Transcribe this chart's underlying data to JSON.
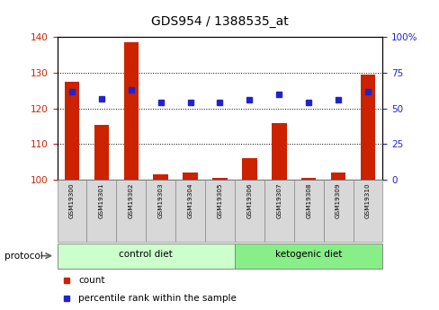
{
  "title": "GDS954 / 1388535_at",
  "samples": [
    "GSM19300",
    "GSM19301",
    "GSM19302",
    "GSM19303",
    "GSM19304",
    "GSM19305",
    "GSM19306",
    "GSM19307",
    "GSM19308",
    "GSM19309",
    "GSM19310"
  ],
  "counts": [
    127.5,
    115.5,
    138.5,
    101.5,
    102.0,
    100.5,
    106.0,
    116.0,
    100.5,
    102.0,
    129.5
  ],
  "percentile_ranks": [
    62,
    57,
    63,
    54,
    54,
    54,
    56,
    60,
    54,
    56,
    62
  ],
  "ylim_left": [
    100,
    140
  ],
  "ylim_right": [
    0,
    100
  ],
  "yticks_left": [
    100,
    110,
    120,
    130,
    140
  ],
  "yticks_right": [
    0,
    25,
    50,
    75,
    100
  ],
  "bar_color": "#cc2200",
  "dot_color": "#2222cc",
  "control_label": "control diet",
  "ketogenic_label": "ketogenic diet",
  "protocol_label": "protocol",
  "legend_count": "count",
  "legend_percentile": "percentile rank within the sample",
  "control_color": "#ccffcc",
  "ketogenic_color": "#88ee88",
  "bar_label_color": "#cc2200",
  "right_label_color": "#2222cc",
  "sample_box_color": "#d8d8d8",
  "n_control": 6,
  "n_total": 11
}
